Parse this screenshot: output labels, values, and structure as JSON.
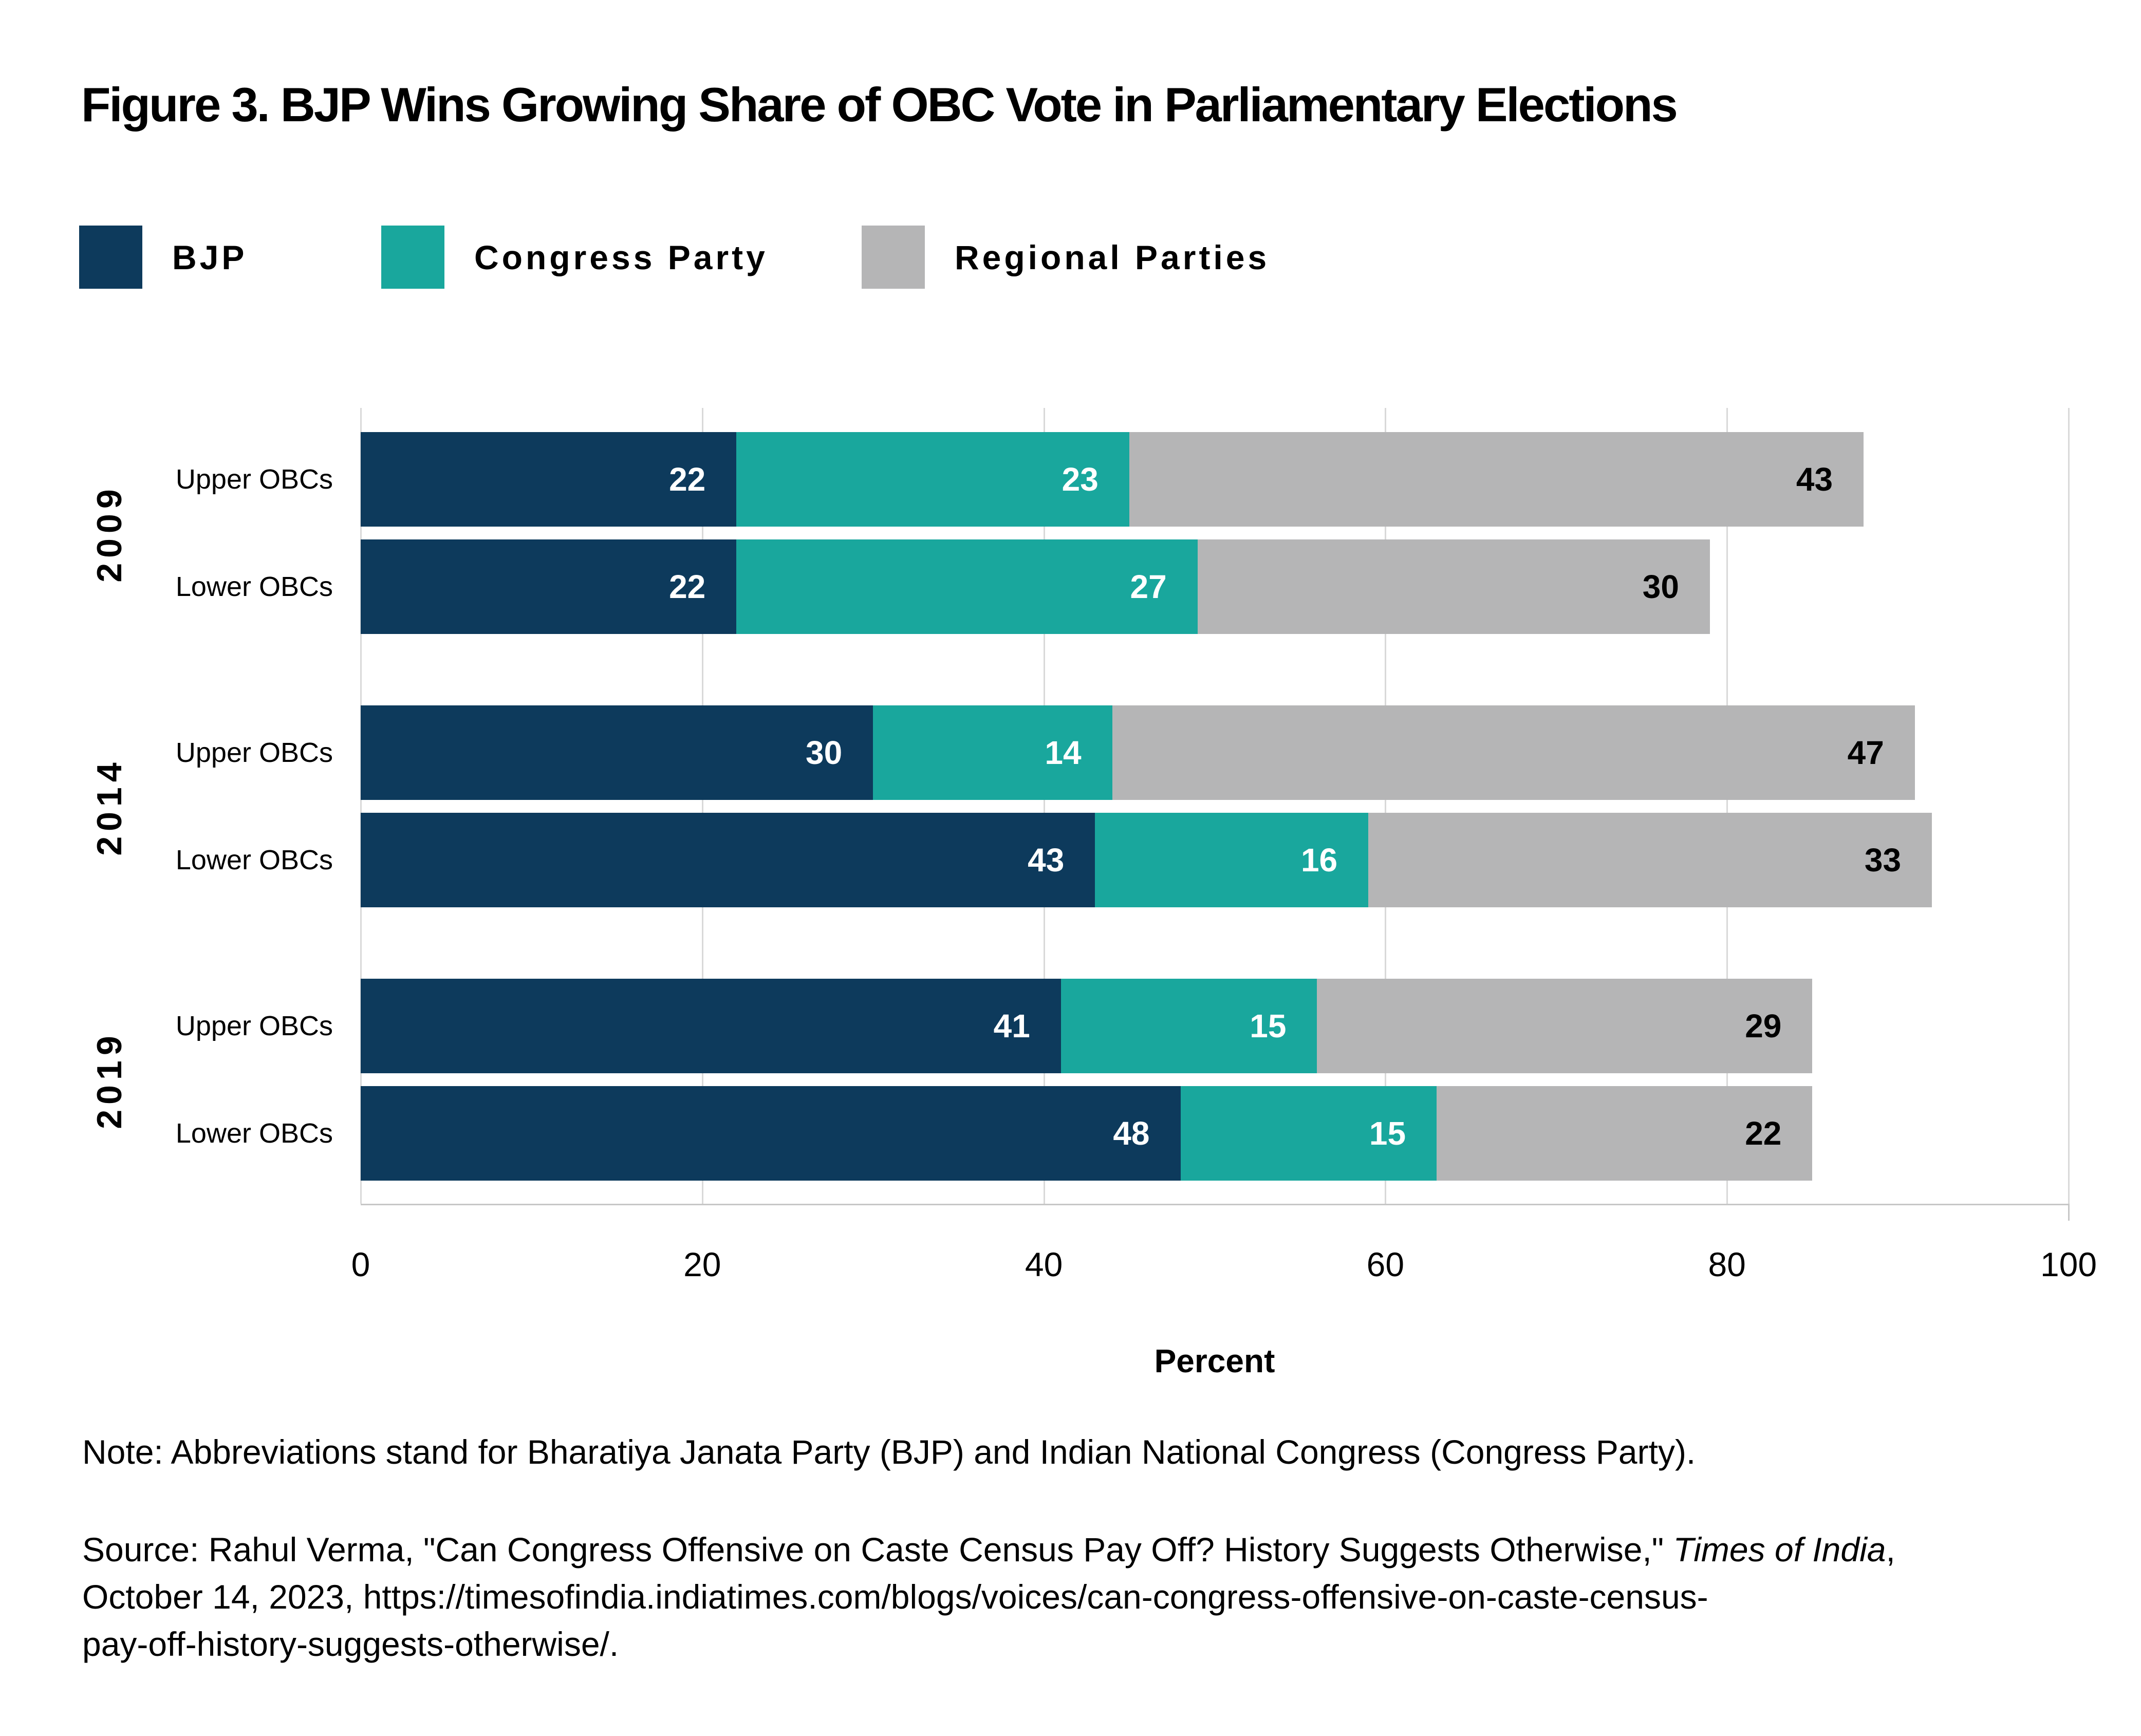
{
  "title": "Figure 3. BJP Wins Growing Share of OBC Vote in Parliamentary Elections",
  "chart_data": {
    "type": "bar",
    "orientation": "horizontal",
    "stacked": true,
    "grid": true,
    "legend_position": "top",
    "xlabel": "Percent",
    "xlim": [
      0,
      100
    ],
    "x_ticks": [
      0,
      20,
      40,
      60,
      80,
      100
    ],
    "series": [
      {
        "name": "BJP",
        "color": "#0d3a5c",
        "label_color": "#ffffff"
      },
      {
        "name": "Congress Party",
        "color": "#19a79d",
        "label_color": "#ffffff"
      },
      {
        "name": "Regional Parties",
        "color": "#b5b5b6",
        "label_color": "#000000"
      }
    ],
    "groups": [
      {
        "year": "2009",
        "rows": [
          {
            "label": "Upper OBCs",
            "values": [
              22,
              23,
              43
            ]
          },
          {
            "label": "Lower OBCs",
            "values": [
              22,
              27,
              30
            ]
          }
        ]
      },
      {
        "year": "2014",
        "rows": [
          {
            "label": "Upper OBCs",
            "values": [
              30,
              14,
              47
            ]
          },
          {
            "label": "Lower OBCs",
            "values": [
              43,
              16,
              33
            ]
          }
        ]
      },
      {
        "year": "2019",
        "rows": [
          {
            "label": "Upper OBCs",
            "values": [
              41,
              15,
              29
            ]
          },
          {
            "label": "Lower OBCs",
            "values": [
              48,
              15,
              22
            ]
          }
        ]
      }
    ]
  },
  "note": "Note: Abbreviations stand for Bharatiya Janata Party (BJP) and Indian National Congress (Congress Party).",
  "source": {
    "line1_prefix": "Source: Rahul Verma, \"Can Congress Offensive on Caste Census Pay Off? History Suggests Otherwise,\" ",
    "line1_italic": "Times of India",
    "line1_after": ",",
    "line2": "October 14, 2023, https://timesofindia.indiatimes.com/blogs/voices/can-congress-offensive-on-caste-census-",
    "line3": "pay-off-history-suggests-otherwise/."
  }
}
